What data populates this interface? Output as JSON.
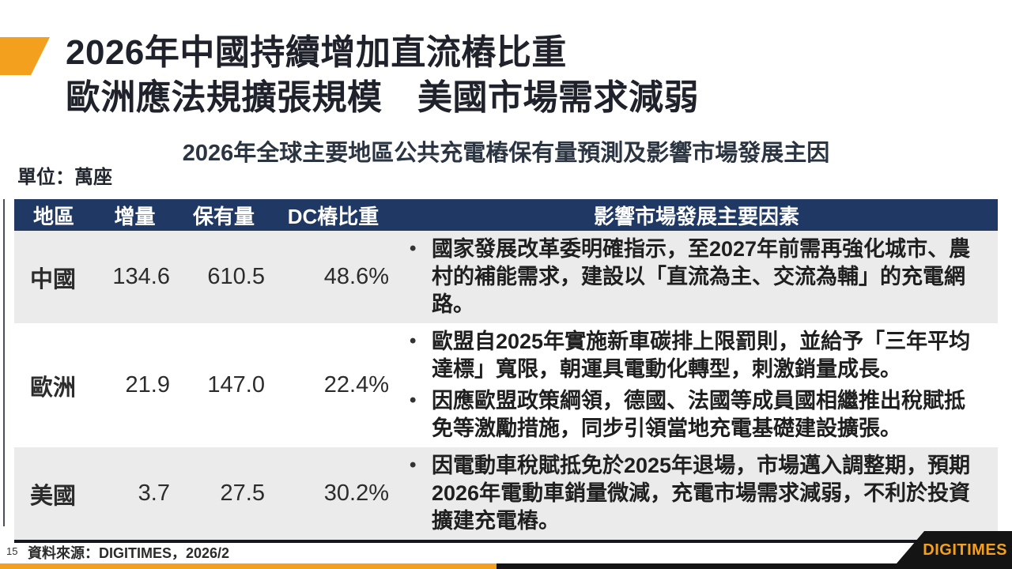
{
  "slide": {
    "title_line1": "2026年中國持續增加直流樁比重",
    "title_line2": "歐洲應法規擴張規模　美國市場需求減弱",
    "subtitle": "2026年全球主要地區公共充電樁保有量預測及影響市場發展主因",
    "unit_label": "單位：萬座",
    "page_number": "15",
    "source_label": "資料來源：DIGITIMES，2026/2",
    "logo_text": "DIGITIMES"
  },
  "colors": {
    "accent_orange": "#F3A01E",
    "header_navy": "#1F3864",
    "row_stripe_gray": "#EBEBEB",
    "table_border_dark": "#16161F",
    "logo_black": "#141414"
  },
  "table": {
    "headers": [
      "地區",
      "增量",
      "保有量",
      "DC樁比重",
      "影響市場發展主要因素"
    ],
    "rows": [
      {
        "region": "中國",
        "increase": "134.6",
        "stock": "610.5",
        "dc_share": "48.6%",
        "factors": [
          "國家發展改革委明確指示，至2027年前需再強化城市、農村的補能需求，建設以「直流為主、交流為輔」的充電網路。"
        ]
      },
      {
        "region": "歐洲",
        "increase": "21.9",
        "stock": "147.0",
        "dc_share": "22.4%",
        "factors": [
          "歐盟自2025年實施新車碳排上限罰則，並給予「三年平均達標」寬限，朝運具電動化轉型，刺激銷量成長。",
          "因應歐盟政策綱領，德國、法國等成員國相繼推出稅賦抵免等激勵措施，同步引領當地充電基礎建設擴張。"
        ]
      },
      {
        "region": "美國",
        "increase": "3.7",
        "stock": "27.5",
        "dc_share": "30.2%",
        "factors": [
          "因電動車稅賦抵免於2025年退場，市場邁入調整期，預期2026年電動車銷量微減，充電市場需求減弱，不利於投資擴建充電樁。"
        ]
      }
    ]
  },
  "chart_data": {
    "type": "table",
    "title": "2026年全球主要地區公共充電樁保有量預測及影響市場發展主因",
    "unit": "萬座",
    "columns": [
      "地區",
      "增量",
      "保有量",
      "DC樁比重"
    ],
    "rows": [
      [
        "中國",
        134.6,
        610.5,
        "48.6%"
      ],
      [
        "歐洲",
        21.9,
        147.0,
        "22.4%"
      ],
      [
        "美國",
        3.7,
        27.5,
        "30.2%"
      ]
    ]
  }
}
